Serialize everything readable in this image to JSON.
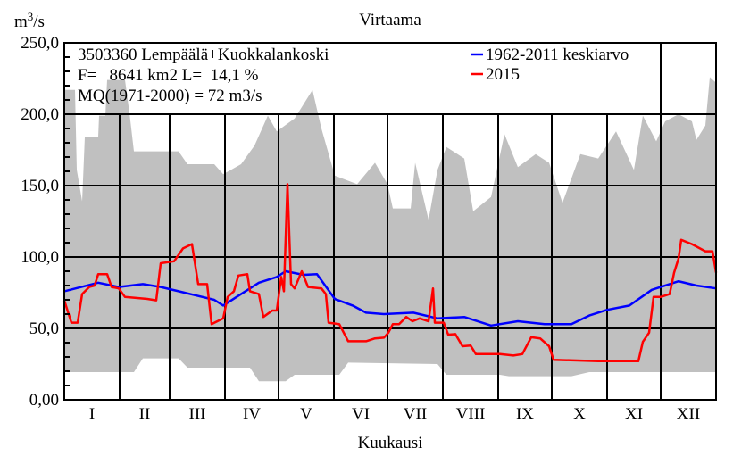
{
  "chart_data": {
    "type": "line",
    "title": "Virtaama",
    "xlabel": "Kuukausi",
    "ylabel": {
      "base": "m",
      "sup": "3",
      "rest": "/s"
    },
    "ylim": [
      0,
      250
    ],
    "xlim_days": [
      0,
      365
    ],
    "yticks": [
      "0,00",
      "50,0",
      "100,0",
      "150,0",
      "200,0",
      "250,0"
    ],
    "ytick_values": [
      0,
      50,
      100,
      150,
      200,
      250
    ],
    "months": [
      "I",
      "II",
      "III",
      "IV",
      "V",
      "VI",
      "VII",
      "VIII",
      "IX",
      "X",
      "XI",
      "XII"
    ],
    "info": [
      "3503360 Lempäälä+Kuokkalankoski",
      "F=   8641 km2 L=  14,1 %",
      "MQ(1971-2000) = 72 m3/s"
    ],
    "legend": {
      "placement": "top-right"
    },
    "envelope": {
      "color": "#c0c0c0",
      "max": [
        [
          0,
          217
        ],
        [
          6,
          217
        ],
        [
          7,
          161
        ],
        [
          10,
          139
        ],
        [
          11.5,
          184
        ],
        [
          19,
          184
        ],
        [
          19.5,
          199
        ],
        [
          23,
          199
        ],
        [
          24,
          224
        ],
        [
          34,
          224
        ],
        [
          36.5,
          201
        ],
        [
          39,
          174
        ],
        [
          64,
          174
        ],
        [
          69,
          165
        ],
        [
          84,
          165
        ],
        [
          89,
          158
        ],
        [
          99,
          165
        ],
        [
          106.5,
          178
        ],
        [
          114,
          199
        ],
        [
          119,
          188
        ],
        [
          129,
          197
        ],
        [
          139,
          217
        ],
        [
          144,
          190
        ],
        [
          151.5,
          157
        ],
        [
          164,
          151
        ],
        [
          174,
          166
        ],
        [
          181,
          151
        ],
        [
          184,
          134
        ],
        [
          194,
          134
        ],
        [
          196.5,
          166
        ],
        [
          204,
          126
        ],
        [
          209,
          161
        ],
        [
          214,
          177
        ],
        [
          224,
          169
        ],
        [
          229,
          132
        ],
        [
          239,
          142
        ],
        [
          246.5,
          186
        ],
        [
          254,
          163
        ],
        [
          264,
          172
        ],
        [
          271.5,
          166
        ],
        [
          279,
          138
        ],
        [
          289,
          172
        ],
        [
          299,
          169
        ],
        [
          309,
          188
        ],
        [
          319,
          161
        ],
        [
          324,
          199
        ],
        [
          331.5,
          181
        ],
        [
          336.5,
          195
        ],
        [
          344,
          200
        ],
        [
          351.5,
          195
        ],
        [
          354,
          182
        ],
        [
          359,
          192
        ],
        [
          361.5,
          226
        ],
        [
          365,
          222
        ]
      ],
      "min": [
        [
          0,
          19.4
        ],
        [
          39,
          19.4
        ],
        [
          44,
          29
        ],
        [
          64,
          29
        ],
        [
          69,
          22.5
        ],
        [
          104,
          22.5
        ],
        [
          109,
          13
        ],
        [
          124,
          13
        ],
        [
          129,
          17.5
        ],
        [
          154,
          17.5
        ],
        [
          159,
          26
        ],
        [
          209,
          25
        ],
        [
          214,
          17.5
        ],
        [
          244,
          17.5
        ],
        [
          249,
          16.5
        ],
        [
          284,
          16.5
        ],
        [
          294,
          19.4
        ],
        [
          365,
          19.4
        ]
      ]
    },
    "series": [
      {
        "name": "1962-2011 keskiarvo",
        "color": "#0000ff",
        "points": [
          [
            0,
            76
          ],
          [
            19,
            82
          ],
          [
            30.5,
            79
          ],
          [
            44,
            81
          ],
          [
            54,
            79
          ],
          [
            64,
            76
          ],
          [
            74,
            73
          ],
          [
            84,
            70
          ],
          [
            89,
            66
          ],
          [
            99,
            74
          ],
          [
            109,
            82
          ],
          [
            119,
            86
          ],
          [
            124,
            90
          ],
          [
            134,
            87.5
          ],
          [
            141.5,
            88
          ],
          [
            151.5,
            70.6
          ],
          [
            161.5,
            66
          ],
          [
            169,
            61
          ],
          [
            179,
            60
          ],
          [
            195.5,
            61
          ],
          [
            209,
            57
          ],
          [
            224,
            58
          ],
          [
            239,
            52
          ],
          [
            254,
            55
          ],
          [
            269,
            53
          ],
          [
            284,
            53
          ],
          [
            294,
            59
          ],
          [
            304,
            63
          ],
          [
            316.5,
            66
          ],
          [
            329,
            77
          ],
          [
            344,
            83
          ],
          [
            354,
            80
          ],
          [
            365,
            78
          ]
        ]
      },
      {
        "name": "2015",
        "color": "#ff0000",
        "points": [
          [
            0,
            69.6
          ],
          [
            4,
            54
          ],
          [
            7.5,
            54
          ],
          [
            10,
            74
          ],
          [
            14,
            79
          ],
          [
            17,
            80
          ],
          [
            19,
            88
          ],
          [
            24,
            88
          ],
          [
            26.5,
            79
          ],
          [
            30.5,
            78
          ],
          [
            34,
            72
          ],
          [
            46.5,
            70.6
          ],
          [
            51.5,
            69.6
          ],
          [
            54,
            95.6
          ],
          [
            61.5,
            97
          ],
          [
            66.5,
            106
          ],
          [
            71.5,
            109
          ],
          [
            75,
            81
          ],
          [
            80,
            81
          ],
          [
            82.5,
            53
          ],
          [
            89,
            57
          ],
          [
            91.5,
            72
          ],
          [
            95,
            76
          ],
          [
            97.5,
            87
          ],
          [
            102.5,
            88
          ],
          [
            104,
            76
          ],
          [
            109,
            74
          ],
          [
            111.5,
            58
          ],
          [
            116.5,
            62.5
          ],
          [
            119,
            62.5
          ],
          [
            121.5,
            86
          ],
          [
            123,
            76
          ],
          [
            125,
            151
          ],
          [
            127,
            81
          ],
          [
            129,
            78
          ],
          [
            133,
            90
          ],
          [
            136.5,
            79
          ],
          [
            144,
            78
          ],
          [
            146.5,
            74
          ],
          [
            148,
            54
          ],
          [
            154,
            53
          ],
          [
            159,
            41
          ],
          [
            169,
            41
          ],
          [
            174,
            43
          ],
          [
            179,
            43.5
          ],
          [
            181.5,
            47
          ],
          [
            184,
            53
          ],
          [
            187.5,
            53
          ],
          [
            191.5,
            58
          ],
          [
            195,
            55
          ],
          [
            199,
            57
          ],
          [
            204,
            55
          ],
          [
            206.5,
            78
          ],
          [
            207.5,
            54
          ],
          [
            212.5,
            54
          ],
          [
            215,
            45.6
          ],
          [
            219,
            46
          ],
          [
            223,
            37.5
          ],
          [
            227.5,
            38
          ],
          [
            230.5,
            32
          ],
          [
            244,
            32
          ],
          [
            251.5,
            31
          ],
          [
            256.5,
            32
          ],
          [
            261.5,
            43.8
          ],
          [
            266.5,
            43
          ],
          [
            271.5,
            37.5
          ],
          [
            274,
            28
          ],
          [
            299,
            27
          ],
          [
            321.5,
            27
          ],
          [
            324,
            40.6
          ],
          [
            327.5,
            47
          ],
          [
            330,
            72
          ],
          [
            334,
            72
          ],
          [
            339,
            74
          ],
          [
            341.5,
            89
          ],
          [
            344,
            99
          ],
          [
            345.5,
            112
          ],
          [
            351.5,
            109
          ],
          [
            359,
            104
          ],
          [
            363,
            104
          ],
          [
            365,
            89
          ]
        ]
      }
    ]
  }
}
